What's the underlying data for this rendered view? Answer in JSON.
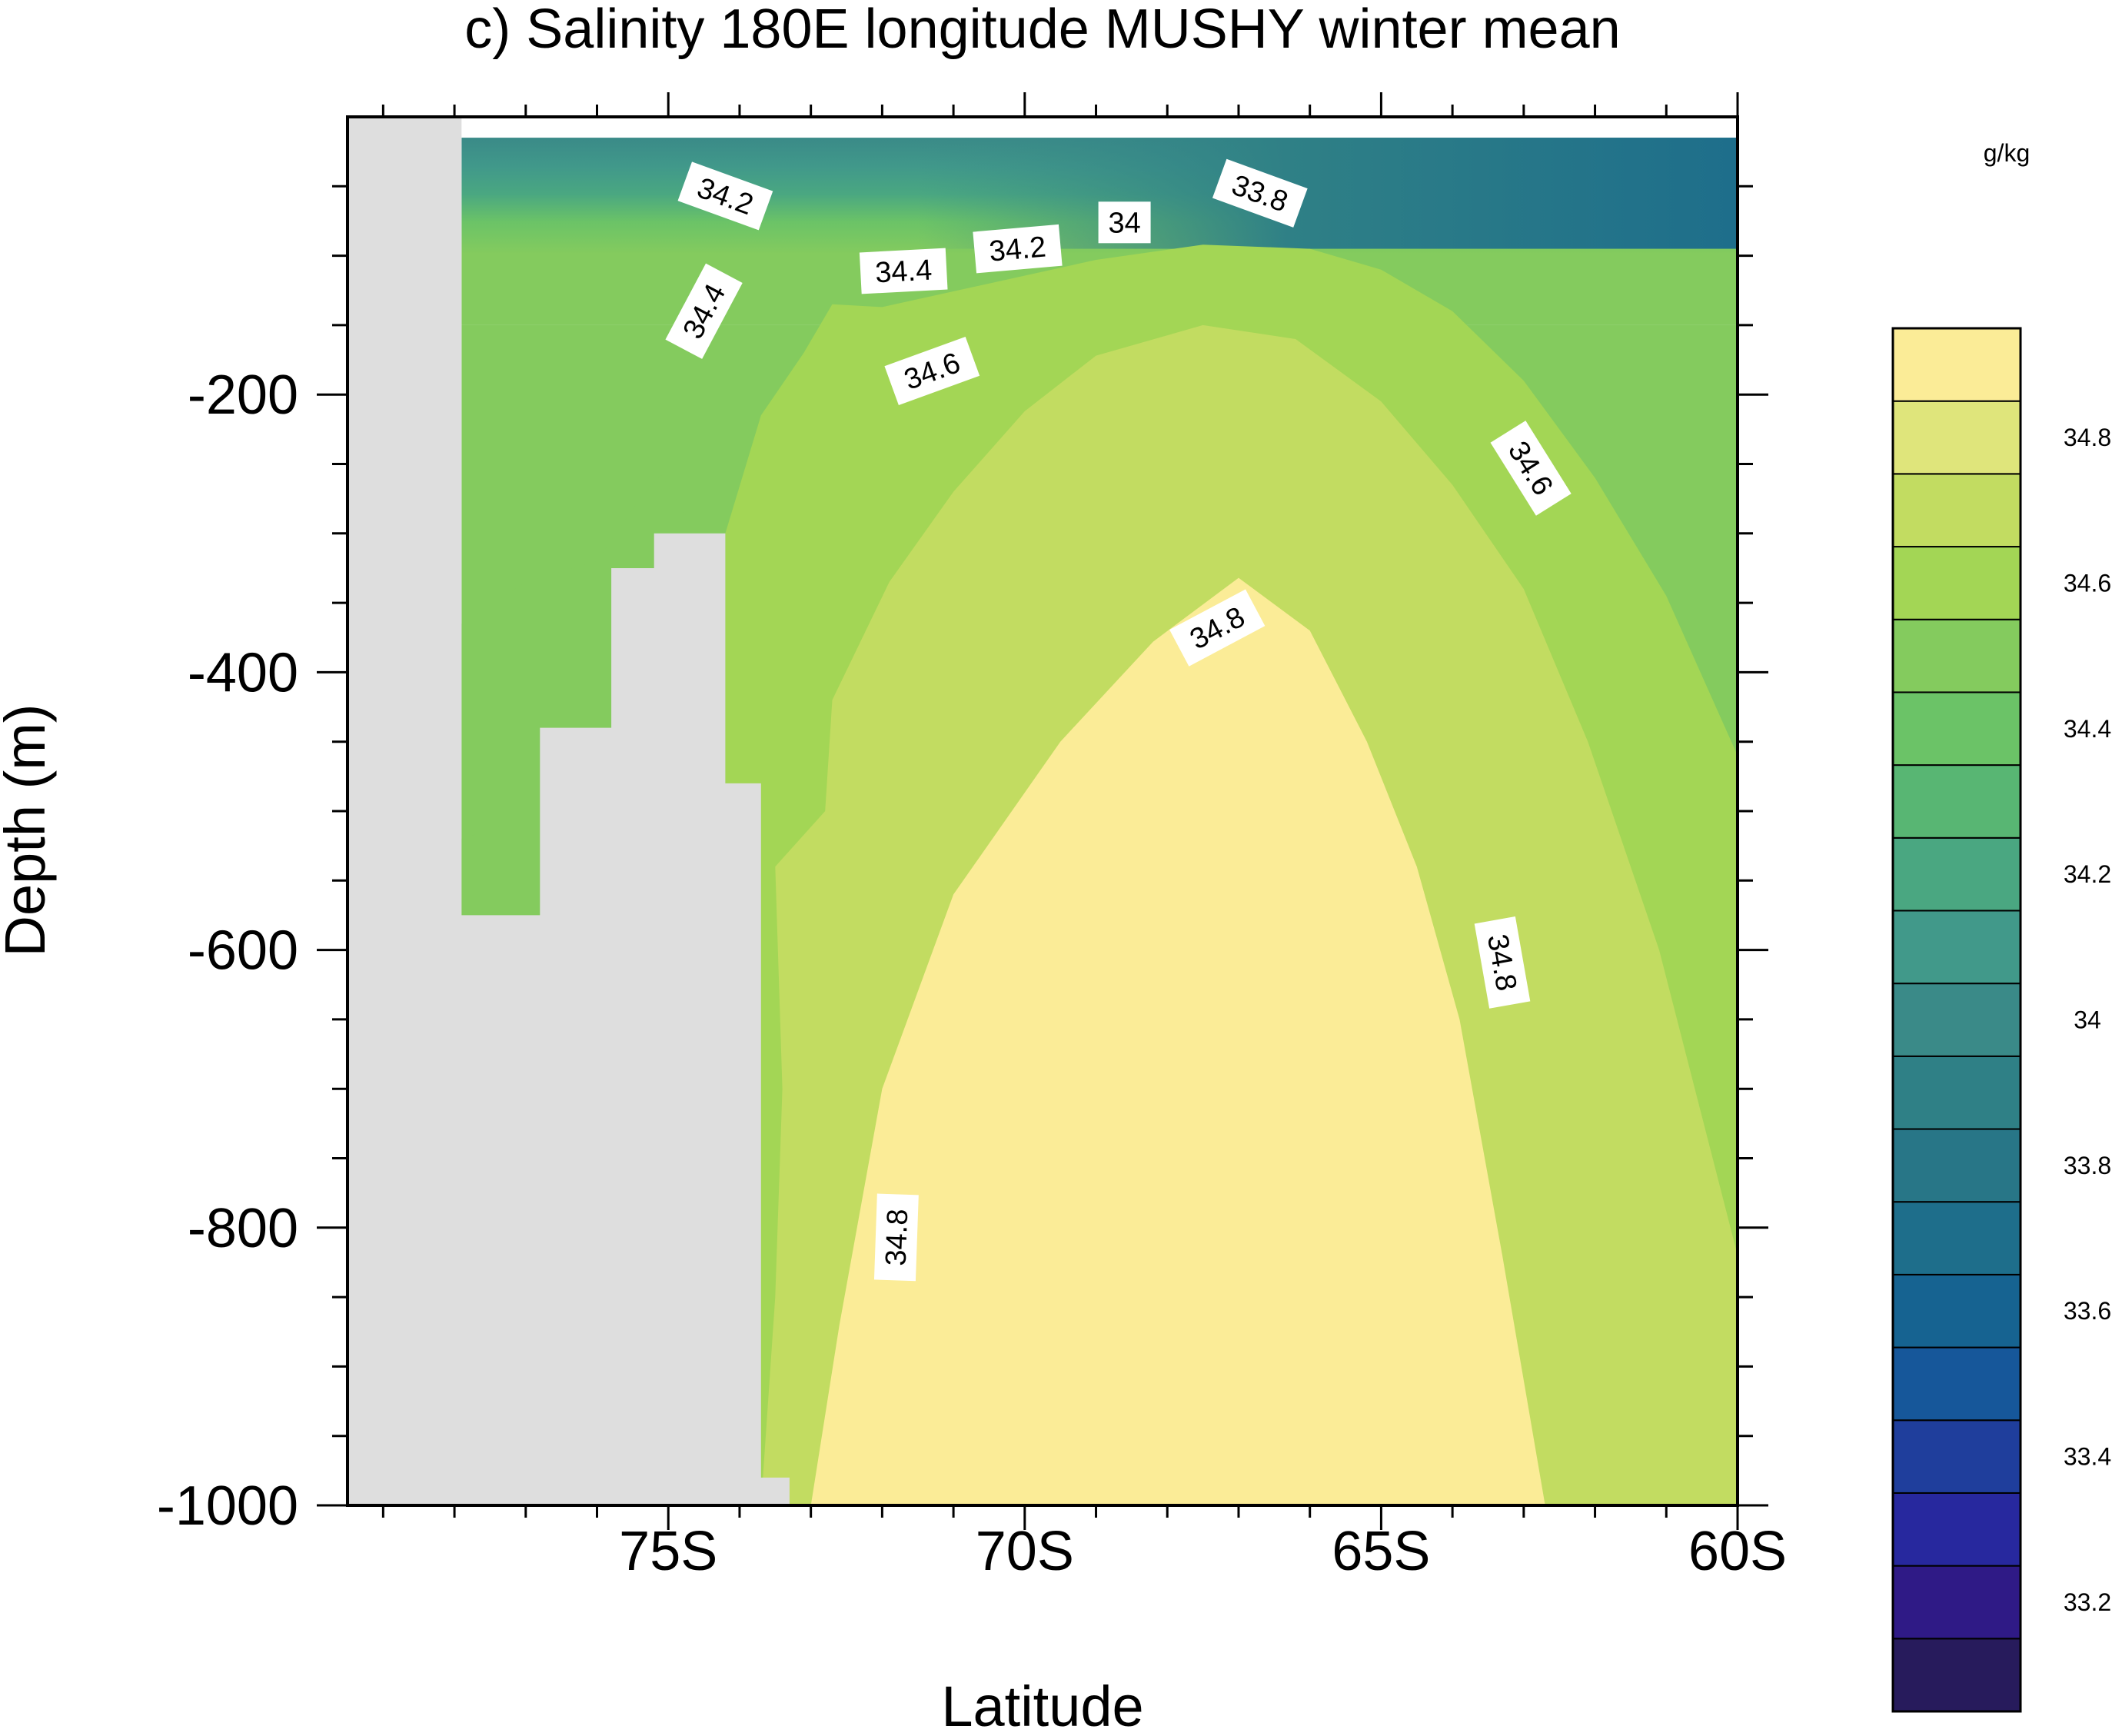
{
  "chart_data": {
    "type": "heatmap",
    "title": "c) Salinity 180E longitude MUSHY winter mean",
    "xlabel": "Latitude",
    "ylabel": "Depth (m)",
    "xlim": [
      -79.5,
      -60
    ],
    "ylim": [
      -1000,
      0
    ],
    "xticks": [
      {
        "value": -75,
        "label": "75S"
      },
      {
        "value": -70,
        "label": "70S"
      },
      {
        "value": -65,
        "label": "65S"
      },
      {
        "value": -60,
        "label": "60S"
      }
    ],
    "yticks": [
      {
        "value": -200,
        "label": "-200"
      },
      {
        "value": -400,
        "label": "-400"
      },
      {
        "value": -600,
        "label": "-600"
      },
      {
        "value": -800,
        "label": "-800"
      },
      {
        "value": -1000,
        "label": "-1000"
      }
    ],
    "colorbar": {
      "units": "g/kg",
      "levels": [
        33.1,
        33.2,
        33.3,
        33.4,
        33.5,
        33.6,
        33.7,
        33.8,
        33.9,
        34.0,
        34.1,
        34.2,
        34.3,
        34.4,
        34.5,
        34.6,
        34.7,
        34.8,
        34.9
      ],
      "labels": [
        "33.2",
        "33.4",
        "33.6",
        "33.8",
        "34",
        "34.2",
        "34.4",
        "34.6",
        "34.8"
      ],
      "label_values": [
        33.2,
        33.4,
        33.6,
        33.8,
        34.0,
        34.2,
        34.4,
        34.6,
        34.8
      ],
      "colors": [
        "#271b5c",
        "#2f1a86",
        "#27289e",
        "#1f3e9c",
        "#16579a",
        "#166391",
        "#1e6e8b",
        "#287687",
        "#2f8086",
        "#3a8a88",
        "#41998a",
        "#4aa781",
        "#58b673",
        "#6bc367",
        "#84cb5e",
        "#a3d655",
        "#c2dc61",
        "#dfe57b",
        "#fbec97"
      ],
      "land_color": "#dedede"
    },
    "contour_labels": [
      {
        "text": "34.2",
        "lat": -74.2,
        "depth": -57,
        "angle": 20
      },
      {
        "text": "34.2",
        "lat": -70.1,
        "depth": -95,
        "angle": -5
      },
      {
        "text": "34",
        "lat": -68.6,
        "depth": -76,
        "angle": 0
      },
      {
        "text": "33.8",
        "lat": -66.7,
        "depth": -55,
        "angle": 20
      },
      {
        "text": "34.4",
        "lat": -74.5,
        "depth": -140,
        "angle": -62
      },
      {
        "text": "34.4",
        "lat": -71.7,
        "depth": -111,
        "angle": -3
      },
      {
        "text": "34.6",
        "lat": -71.3,
        "depth": -183,
        "angle": -20
      },
      {
        "text": "34.6",
        "lat": -62.9,
        "depth": -253,
        "angle": 58
      },
      {
        "text": "34.8",
        "lat": -67.3,
        "depth": -368,
        "angle": -28
      },
      {
        "text": "34.8",
        "lat": -63.3,
        "depth": -609,
        "angle": 80
      },
      {
        "text": "34.8",
        "lat": -71.8,
        "depth": -807,
        "angle": -88
      }
    ],
    "land_mask": {
      "description": "bathymetry (grey)",
      "boundary": [
        [
          -79.5,
          0
        ],
        [
          -77.9,
          0
        ],
        [
          -77.9,
          -575
        ],
        [
          -76.8,
          -575
        ],
        [
          -76.8,
          -440
        ],
        [
          -75.8,
          -440
        ],
        [
          -75.8,
          -325
        ],
        [
          -75.2,
          -325
        ],
        [
          -75.2,
          -300
        ],
        [
          -74.2,
          -300
        ],
        [
          -74.2,
          -480
        ],
        [
          -73.7,
          -480
        ],
        [
          -73.7,
          -980
        ],
        [
          -73.3,
          -980
        ],
        [
          -73.3,
          -1000
        ],
        [
          -79.5,
          -1000
        ]
      ]
    },
    "contours": [
      {
        "level": 34.85,
        "points": [
          [
            -73.0,
            -1000
          ],
          [
            -72.6,
            -870
          ],
          [
            -72.0,
            -700
          ],
          [
            -71.0,
            -560
          ],
          [
            -69.5,
            -450
          ],
          [
            -68.2,
            -378
          ],
          [
            -67.0,
            -332
          ],
          [
            -66.0,
            -370
          ],
          [
            -65.2,
            -450
          ],
          [
            -64.5,
            -540
          ],
          [
            -63.9,
            -650
          ],
          [
            -63.3,
            -820
          ],
          [
            -62.7,
            -1000
          ]
        ]
      },
      {
        "level": 34.75,
        "points": [
          [
            -73.7,
            -1000
          ],
          [
            -73.5,
            -850
          ],
          [
            -73.4,
            -700
          ],
          [
            -73.5,
            -540
          ],
          [
            -72.8,
            -500
          ],
          [
            -72.7,
            -420
          ],
          [
            -71.9,
            -335
          ],
          [
            -71.0,
            -270
          ],
          [
            -70.0,
            -212
          ],
          [
            -69.0,
            -172
          ],
          [
            -67.5,
            -150
          ],
          [
            -66.2,
            -160
          ],
          [
            -65.0,
            -205
          ],
          [
            -64.0,
            -265
          ],
          [
            -63.0,
            -340
          ],
          [
            -62.1,
            -450
          ],
          [
            -61.1,
            -600
          ],
          [
            -60.2,
            -780
          ],
          [
            -60.0,
            -820
          ]
        ]
      },
      {
        "level": 34.65,
        "points": [
          [
            -74.2,
            -300
          ],
          [
            -73.7,
            -215
          ],
          [
            -73.1,
            -170
          ],
          [
            -72.7,
            -135
          ],
          [
            -72.0,
            -137
          ],
          [
            -70.5,
            -120
          ],
          [
            -69.0,
            -103
          ],
          [
            -67.5,
            -92
          ],
          [
            -66.0,
            -95
          ],
          [
            -65.0,
            -110
          ],
          [
            -64.0,
            -140
          ],
          [
            -63.0,
            -190
          ],
          [
            -62.0,
            -260
          ],
          [
            -61.0,
            -345
          ],
          [
            -60.0,
            -460
          ]
        ]
      },
      {
        "level": 34.55,
        "points": [
          [
            -77.9,
            -365
          ],
          [
            -77.0,
            -335
          ],
          [
            -76.0,
            -320
          ],
          [
            -75.4,
            -275
          ],
          [
            -75.1,
            -258
          ],
          [
            -74.6,
            -300
          ],
          [
            -74.2,
            -300
          ]
        ]
      },
      {
        "level": 34.5,
        "points": [
          [
            -77.9,
            -520
          ],
          [
            -77.3,
            -510
          ],
          [
            -76.8,
            -510
          ]
        ]
      }
    ]
  }
}
